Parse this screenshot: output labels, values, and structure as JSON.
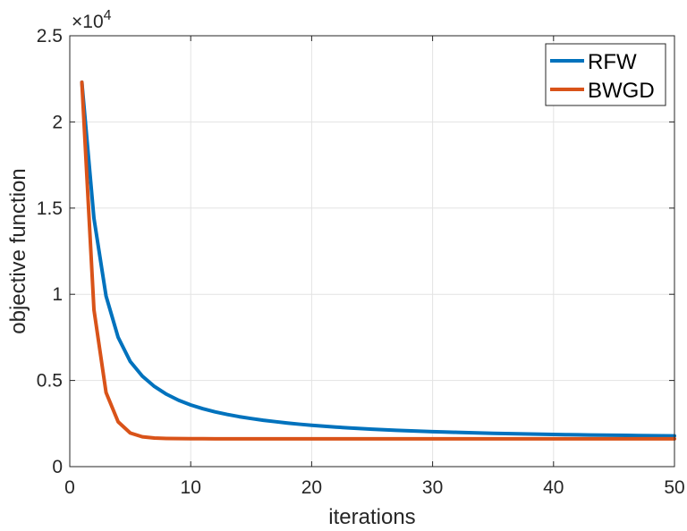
{
  "chart_data": {
    "type": "line",
    "title": "",
    "xlabel": "iterations",
    "ylabel": "objective function",
    "y_multiplier_label": {
      "base": "×10",
      "exponent": "4"
    },
    "xlim": [
      0,
      50
    ],
    "ylim": [
      0,
      25000
    ],
    "x_ticks": [
      0,
      10,
      20,
      30,
      40,
      50
    ],
    "x_tick_labels": [
      "0",
      "10",
      "20",
      "30",
      "40",
      "50"
    ],
    "y_ticks": [
      0,
      5000,
      10000,
      15000,
      20000,
      25000
    ],
    "y_tick_labels": [
      "0",
      "0.5",
      "1",
      "1.5",
      "2",
      "2.5"
    ],
    "grid": true,
    "legend_position": "top-right",
    "x": [
      1,
      2,
      3,
      4,
      5,
      6,
      7,
      8,
      9,
      10,
      11,
      12,
      13,
      14,
      15,
      16,
      17,
      18,
      19,
      20,
      21,
      22,
      23,
      24,
      25,
      26,
      27,
      28,
      29,
      30,
      31,
      32,
      33,
      34,
      35,
      36,
      37,
      38,
      39,
      40,
      41,
      42,
      43,
      44,
      45,
      46,
      47,
      48,
      49,
      50
    ],
    "series": [
      {
        "name": "RFW",
        "color": "#0072BD",
        "values": [
          22300,
          14400,
          9900,
          7500,
          6100,
          5250,
          4650,
          4200,
          3850,
          3580,
          3360,
          3180,
          3030,
          2900,
          2790,
          2690,
          2610,
          2530,
          2460,
          2400,
          2345,
          2295,
          2250,
          2210,
          2175,
          2140,
          2110,
          2080,
          2055,
          2030,
          2010,
          1990,
          1970,
          1952,
          1935,
          1920,
          1905,
          1892,
          1880,
          1868,
          1857,
          1847,
          1837,
          1828,
          1820,
          1812,
          1805,
          1798,
          1792,
          1786
        ]
      },
      {
        "name": "BWGD",
        "color": "#D95319",
        "values": [
          22300,
          9100,
          4300,
          2600,
          1950,
          1730,
          1660,
          1635,
          1625,
          1620,
          1618,
          1617,
          1616,
          1616,
          1616,
          1616,
          1616,
          1616,
          1616,
          1616,
          1616,
          1616,
          1616,
          1616,
          1616,
          1616,
          1616,
          1616,
          1616,
          1616,
          1616,
          1616,
          1616,
          1616,
          1616,
          1616,
          1616,
          1616,
          1616,
          1616,
          1616,
          1616,
          1616,
          1616,
          1616,
          1616,
          1616,
          1616,
          1616,
          1616
        ]
      }
    ]
  }
}
